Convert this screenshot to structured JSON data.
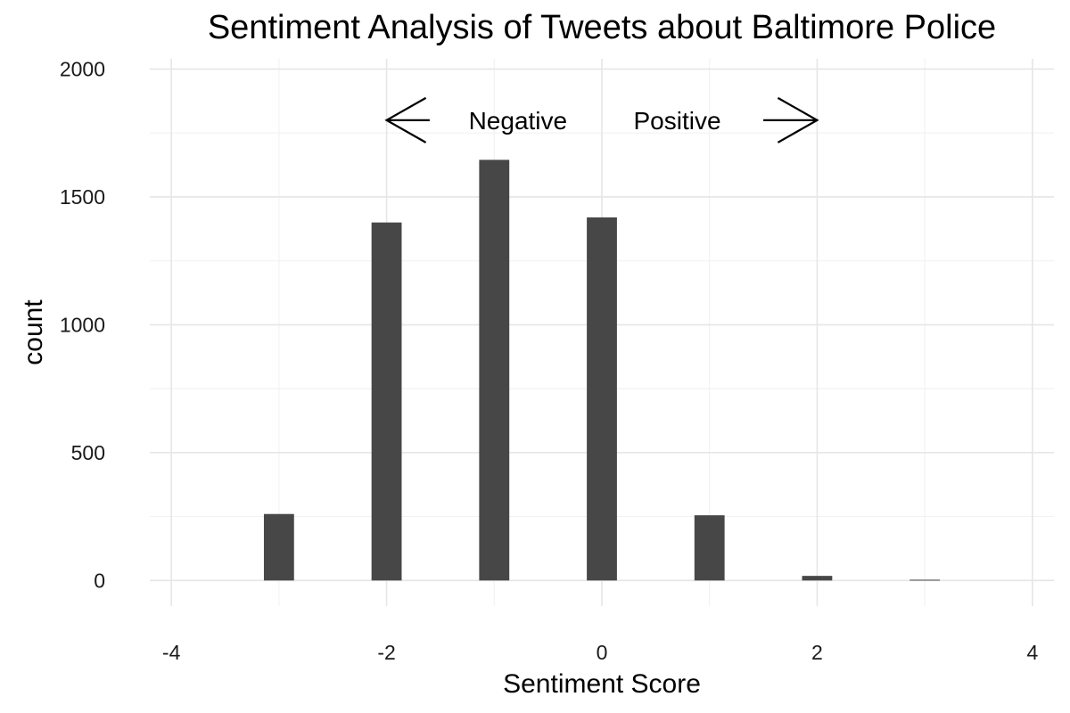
{
  "chart_data": {
    "type": "bar",
    "title": "Sentiment Analysis of Tweets about Baltimore Police",
    "xlabel": "Sentiment Score",
    "ylabel": "count",
    "xlim": [
      -4.2,
      4.2
    ],
    "ylim": [
      -100,
      2040
    ],
    "x_ticks": [
      -4,
      -2,
      0,
      2,
      4
    ],
    "y_ticks": [
      0,
      500,
      1000,
      1500,
      2000
    ],
    "grid": true,
    "bar_color": "#474747",
    "bar_width": 0.28,
    "x": [
      -3,
      -2,
      -1.33,
      -1,
      -0.67,
      0,
      1,
      1.33,
      2,
      3
    ],
    "values": [
      260,
      1400,
      0,
      1645,
      0,
      1420,
      255,
      0,
      18,
      3
    ],
    "annotations": {
      "negative_label": "Negative",
      "positive_label": "Positive",
      "arrow_y": 1800,
      "negative_arrow": [
        -1.6,
        -2
      ],
      "positive_arrow": [
        1.5,
        2
      ],
      "negative_text_x": -0.78,
      "positive_text_x": 0.7
    }
  }
}
